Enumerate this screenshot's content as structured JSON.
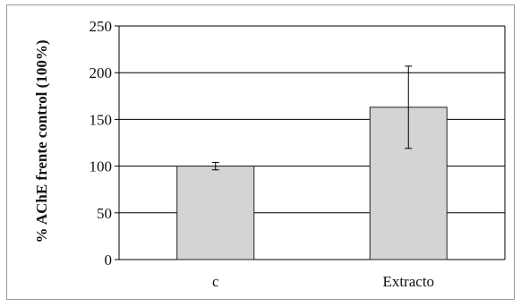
{
  "chart_data": {
    "type": "bar",
    "categories": [
      "c",
      "Extracto"
    ],
    "values": [
      100,
      163
    ],
    "error": [
      4,
      44
    ],
    "ylabel": "% AChE frente control (100%)",
    "xlabel": "",
    "ylim": [
      0,
      250
    ],
    "yticks": [
      0,
      50,
      100,
      150,
      200,
      250
    ],
    "grid": true,
    "colors": {
      "bar_fill": "#d4d4d4",
      "bar_stroke": "#222222",
      "grid": "#000000",
      "frame": "#9a9a9a"
    }
  }
}
